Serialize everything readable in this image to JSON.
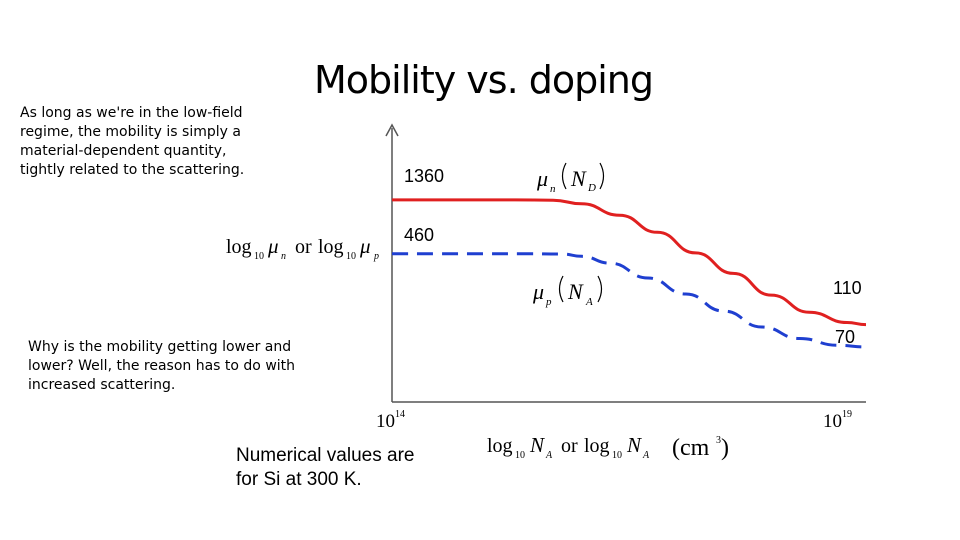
{
  "notes": {
    "top": "As long as we're in the low-field regime, the mobility is simply a material-dependent quantity, tightly related to the scattering.",
    "bottom": "Why is the mobility getting lower and lower? Well, the reason has to do with increased scattering."
  },
  "footnote": "Numerical values are for Si at 300 K.",
  "chart_data": {
    "type": "line",
    "title": "Mobility vs. doping",
    "ylabel": {
      "base": "log",
      "sub": "10",
      "mu": "μ",
      "n": "n",
      "or": "or",
      "p": "p"
    },
    "xlabel": {
      "base": "log",
      "sub": "10",
      "NA": "N",
      "Asub": "A",
      "or": "or",
      "unit": "(cm",
      "exp": "3",
      "close": ")"
    },
    "x_ticks": [
      {
        "base": "10",
        "exp": "14"
      },
      {
        "base": "10",
        "exp": "19"
      }
    ],
    "xlim_log10": [
      14,
      19
    ],
    "axis_color": "#555555",
    "series": [
      {
        "name_mu": "μ",
        "name_sub": "n",
        "name_arg": "N",
        "name_arg_sub": "D",
        "color": "#e02020",
        "style": "solid",
        "start_label": "1360",
        "end_label": "110",
        "x_log10": [
          14.0,
          14.3,
          14.8,
          15.3,
          15.7,
          16.0,
          16.4,
          16.8,
          17.2,
          17.6,
          18.0,
          18.4,
          18.8,
          19.0
        ],
        "y_log10": [
          3.134,
          3.134,
          3.134,
          3.134,
          3.132,
          3.1,
          3.0,
          2.85,
          2.67,
          2.49,
          2.3,
          2.15,
          2.06,
          2.041
        ]
      },
      {
        "name_mu": "μ",
        "name_sub": "p",
        "name_arg": "N",
        "name_arg_sub": "A",
        "color": "#1f3fd0",
        "style": "dashed",
        "start_label": "460",
        "end_label": "70",
        "x_log10": [
          14.0,
          14.5,
          15.0,
          15.4,
          15.8,
          16.0,
          16.3,
          16.7,
          17.1,
          17.5,
          17.9,
          18.3,
          18.7,
          19.0
        ],
        "y_log10": [
          2.663,
          2.663,
          2.663,
          2.663,
          2.66,
          2.64,
          2.58,
          2.45,
          2.31,
          2.16,
          2.02,
          1.92,
          1.86,
          1.845
        ]
      }
    ]
  }
}
